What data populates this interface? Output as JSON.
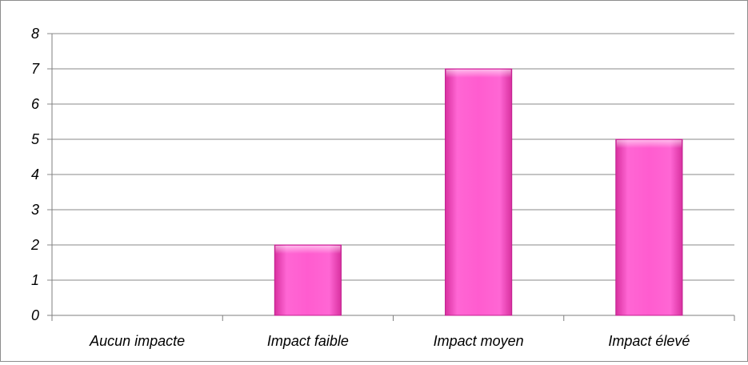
{
  "chart_data": {
    "type": "bar",
    "categories": [
      "Aucun impacte",
      "Impact faible",
      "Impact moyen",
      "Impact élevé"
    ],
    "values": [
      0,
      2,
      7,
      5
    ],
    "ylim": [
      0,
      8
    ],
    "ytick_step": 1,
    "grid": true,
    "legend": "none",
    "bar_color": "#ff5ccf",
    "bar_edge_color": "#c0208f"
  }
}
